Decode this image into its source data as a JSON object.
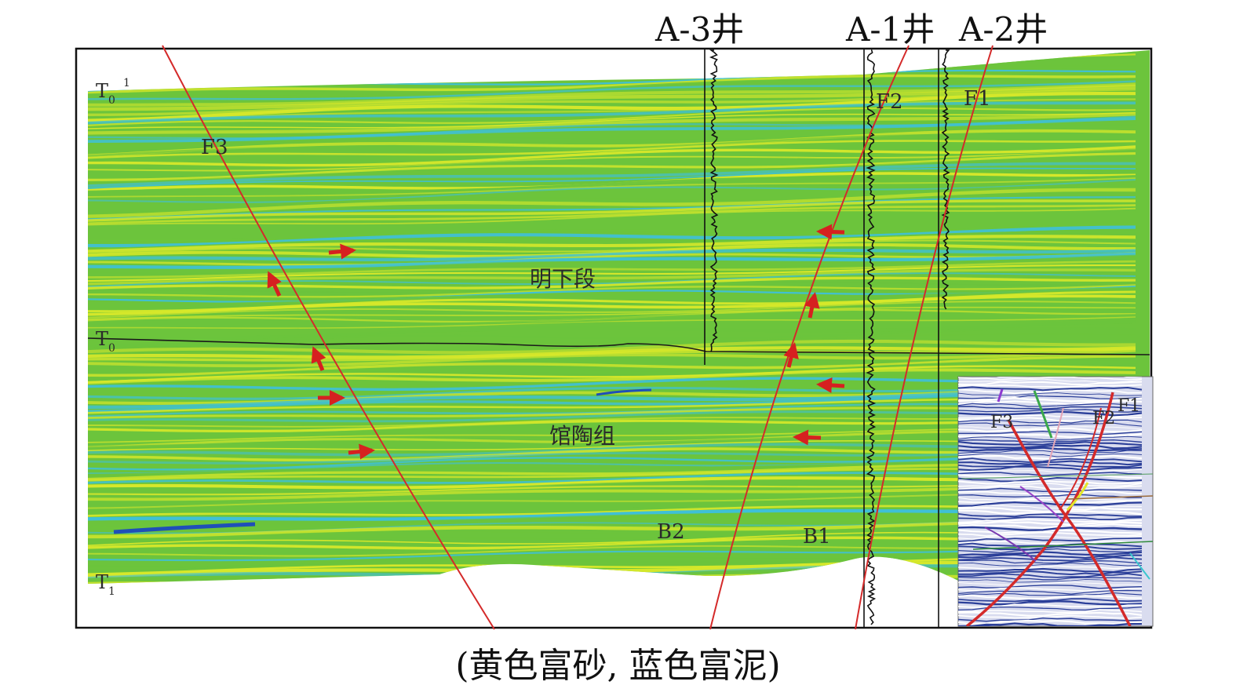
{
  "wells": [
    {
      "name": "A-3井"
    },
    {
      "name": "A-1井"
    },
    {
      "name": "A-2井"
    }
  ],
  "horizons": [
    {
      "label": "T",
      "sub": "0",
      "sup": "1"
    },
    {
      "label": "T",
      "sub": "0",
      "sup": ""
    },
    {
      "label": "T",
      "sub": "1",
      "sup": ""
    }
  ],
  "faults": {
    "f1": "F1",
    "f2": "F2",
    "f3": "F3"
  },
  "formations": {
    "upper": "明下段",
    "lower": "馆陶组"
  },
  "sand_bodies": {
    "b1": "B1",
    "b2": "B2"
  },
  "inset": {
    "f1": "F1",
    "f2": "F2",
    "f3": "F3"
  },
  "caption": "(黄色富砂, 蓝色富泥)",
  "colors": {
    "sand": "#d8e82a",
    "green": "#6cc43c",
    "mud": "#3fc0d6",
    "deep_mud": "#1f4fb8",
    "fault": "#d42a2a",
    "arrow": "#d62020",
    "horizon": "#1a1a1a"
  }
}
